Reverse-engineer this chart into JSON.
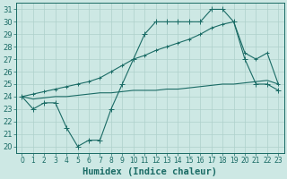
{
  "xlabel": "Humidex (Indice chaleur)",
  "ylabel": "",
  "bg_color": "#cde8e4",
  "grid_color": "#aed0cb",
  "line_color": "#1a6b65",
  "x_ticks": [
    0,
    1,
    2,
    3,
    4,
    5,
    6,
    7,
    8,
    9,
    10,
    11,
    12,
    13,
    14,
    15,
    16,
    17,
    18,
    19,
    20,
    21,
    22,
    23
  ],
  "y_ticks": [
    20,
    21,
    22,
    23,
    24,
    25,
    26,
    27,
    28,
    29,
    30,
    31
  ],
  "xlim": [
    -0.5,
    23.5
  ],
  "ylim": [
    19.5,
    31.5
  ],
  "line1_x": [
    0,
    1,
    2,
    3,
    4,
    5,
    6,
    7,
    8,
    9,
    10,
    11,
    12,
    13,
    14,
    15,
    16,
    17,
    18,
    19,
    20,
    21,
    22,
    23
  ],
  "line1_y": [
    24,
    23,
    23.5,
    23.5,
    21.5,
    20,
    20.5,
    20.5,
    23,
    25,
    27,
    29,
    30,
    30,
    30,
    30,
    30,
    31,
    31,
    30,
    27,
    25,
    25,
    24.5
  ],
  "line2_x": [
    0,
    1,
    2,
    3,
    4,
    5,
    6,
    7,
    8,
    9,
    10,
    11,
    12,
    13,
    14,
    15,
    16,
    17,
    18,
    19,
    20,
    21,
    22,
    23
  ],
  "line2_y": [
    24,
    24.2,
    24.4,
    24.6,
    24.8,
    25.0,
    25.2,
    25.5,
    26.0,
    26.5,
    27.0,
    27.3,
    27.7,
    28.0,
    28.3,
    28.6,
    29.0,
    29.5,
    29.8,
    30.0,
    27.5,
    27.0,
    27.5,
    25.0
  ],
  "line3_x": [
    0,
    1,
    2,
    3,
    4,
    5,
    6,
    7,
    8,
    9,
    10,
    11,
    12,
    13,
    14,
    15,
    16,
    17,
    18,
    19,
    20,
    21,
    22,
    23
  ],
  "line3_y": [
    24,
    23.8,
    23.9,
    24.0,
    24.0,
    24.1,
    24.2,
    24.3,
    24.3,
    24.4,
    24.5,
    24.5,
    24.5,
    24.6,
    24.6,
    24.7,
    24.8,
    24.9,
    25.0,
    25.0,
    25.1,
    25.2,
    25.3,
    25.0
  ],
  "marker_size": 3,
  "font_size_tick": 6,
  "font_size_label": 7.5
}
